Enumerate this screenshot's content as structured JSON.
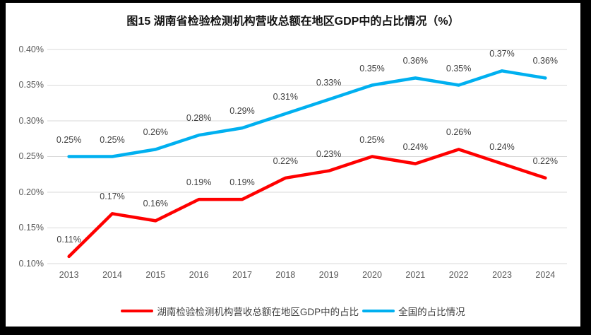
{
  "chart_data": {
    "type": "line",
    "title": "图15 湖南省检验检测机构营收总额在地区GDP中的占比情况（%）",
    "categories": [
      "2013",
      "2014",
      "2015",
      "2016",
      "2017",
      "2018",
      "2019",
      "2020",
      "2021",
      "2022",
      "2023",
      "2024"
    ],
    "series": [
      {
        "id": "hunan",
        "name": "湖南检验检测机构营收总额在地区GDP中的占比",
        "color": "#ff0000",
        "values": [
          0.11,
          0.17,
          0.16,
          0.19,
          0.19,
          0.22,
          0.23,
          0.25,
          0.24,
          0.26,
          0.24,
          0.22
        ],
        "point_labels": [
          "0.11%",
          "0.17%",
          "0.16%",
          "0.19%",
          "0.19%",
          "0.22%",
          "0.23%",
          "0.25%",
          "0.24%",
          "0.26%",
          "0.24%",
          "0.22%"
        ]
      },
      {
        "id": "national",
        "name": "全国的占比情况",
        "color": "#00b0f0",
        "values": [
          0.25,
          0.25,
          0.26,
          0.28,
          0.29,
          0.31,
          0.33,
          0.35,
          0.36,
          0.35,
          0.37,
          0.36
        ],
        "point_labels": [
          "0.25%",
          "0.25%",
          "0.26%",
          "0.28%",
          "0.29%",
          "0.31%",
          "0.33%",
          "0.35%",
          "0.36%",
          "0.35%",
          "0.37%",
          "0.36%"
        ]
      }
    ],
    "xlabel": "",
    "ylabel": "",
    "ylim": [
      0.1,
      0.4
    ],
    "yticks": [
      {
        "value": 0.1,
        "label": "0.10%"
      },
      {
        "value": 0.15,
        "label": "0.15%"
      },
      {
        "value": 0.2,
        "label": "0.20%"
      },
      {
        "value": 0.25,
        "label": "0.25%"
      },
      {
        "value": 0.3,
        "label": "0.30%"
      },
      {
        "value": 0.35,
        "label": "0.35%"
      },
      {
        "value": 0.4,
        "label": "0.40%"
      }
    ],
    "grid": true,
    "legend_position": "bottom",
    "colors": {
      "gridline": "#d9d9d9",
      "axis_label": "#595959",
      "data_label": "#404040",
      "chart_background": "#ffffff",
      "frame_border": "#000000"
    }
  }
}
